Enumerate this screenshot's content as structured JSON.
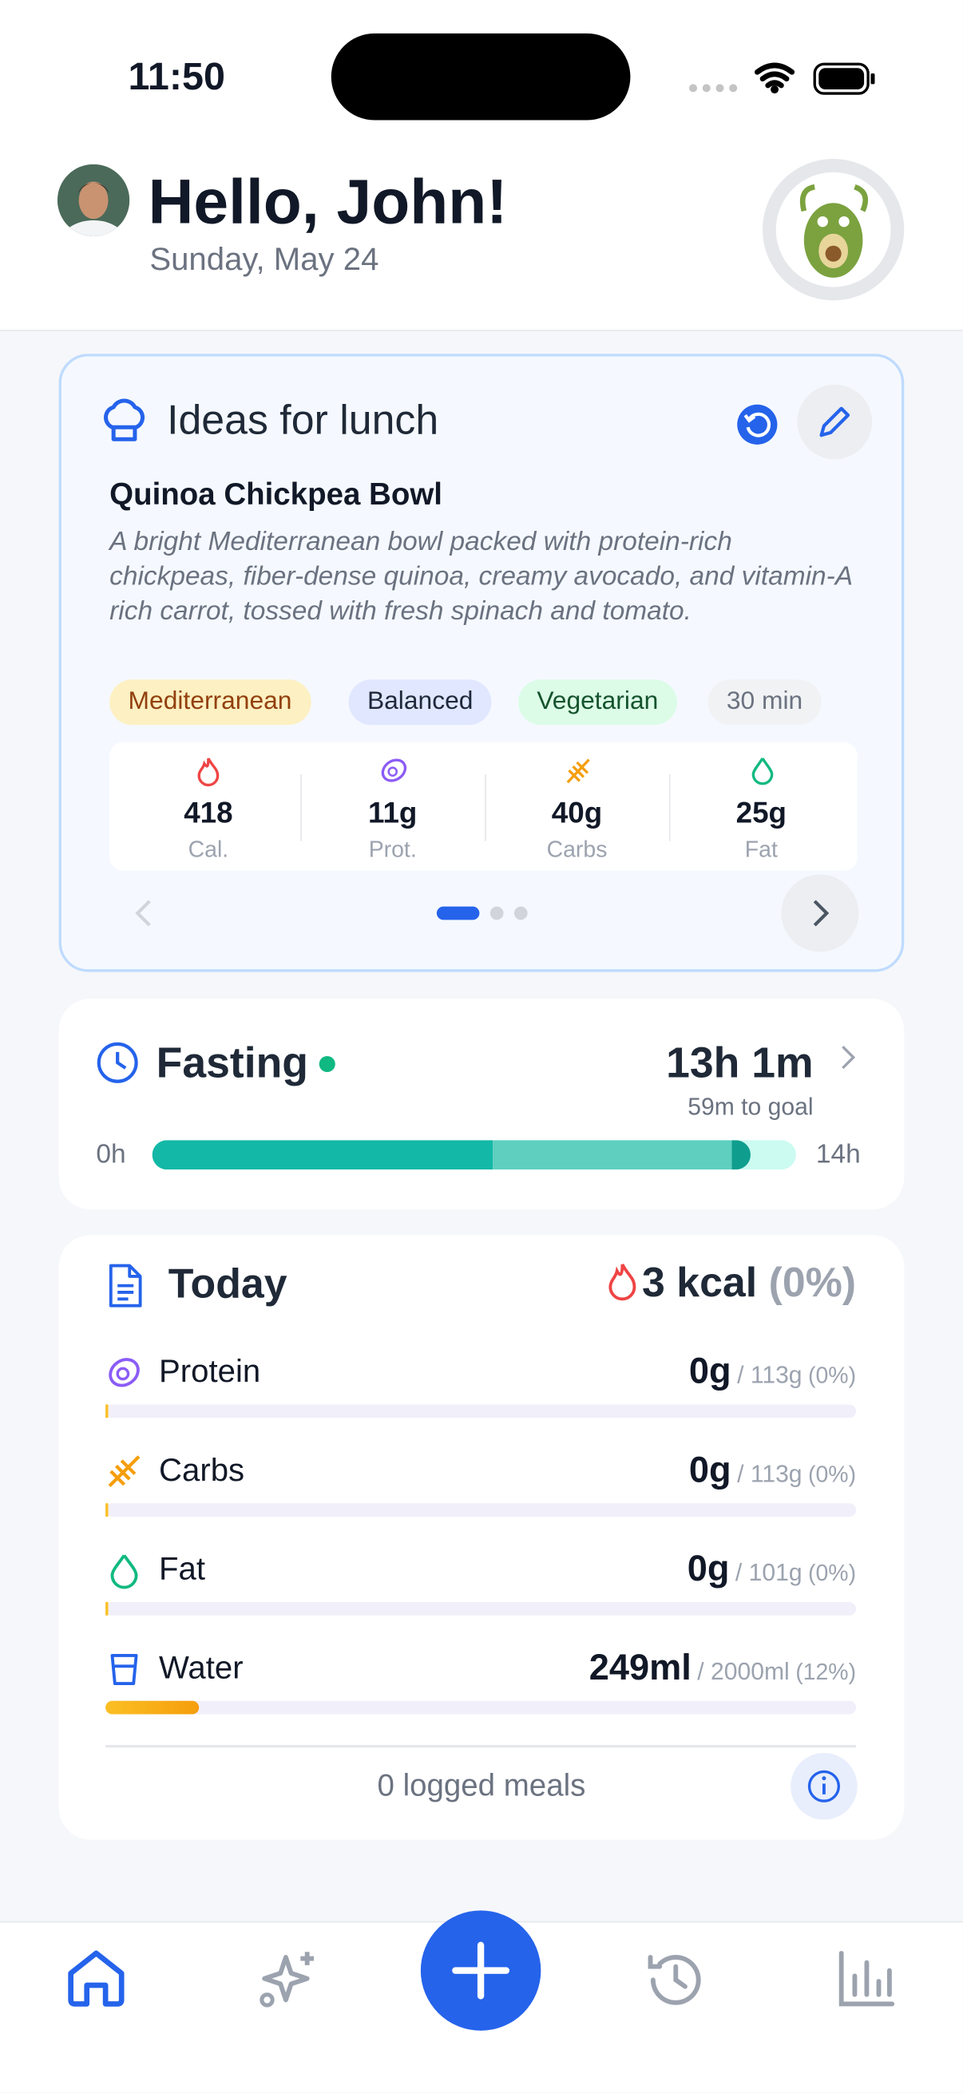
{
  "status_bar": {
    "time": "11:50"
  },
  "header": {
    "greeting": "Hello, John!",
    "date": "Sunday, May 24"
  },
  "idea_card": {
    "title": "Ideas for lunch",
    "recipe": "Quinoa Chickpea Bowl",
    "description": "A bright Mediterranean bowl packed with protein-rich chickpeas, fiber-dense quinoa, creamy avocado, and vitamin-A rich carrot, tossed with fresh spinach and tomato.",
    "tags": [
      "Mediterranean",
      "Balanced",
      "Vegetarian",
      "30 min"
    ],
    "nutrition": [
      {
        "value": "418",
        "label": "Cal."
      },
      {
        "value": "11g",
        "label": "Prot."
      },
      {
        "value": "40g",
        "label": "Carbs"
      },
      {
        "value": "25g",
        "label": "Fat"
      }
    ]
  },
  "fasting": {
    "title": "Fasting",
    "elapsed": "13h 1m",
    "to_goal": "59m to goal",
    "start": "0h",
    "end": "14h"
  },
  "today": {
    "title": "Today",
    "kcal": "3 kcal",
    "kcal_pct": "(0%)",
    "rows": [
      {
        "name": "Protein",
        "value": "0g",
        "goal": "/ 113g",
        "pct": "(0%)"
      },
      {
        "name": "Carbs",
        "value": "0g",
        "goal": "/ 113g",
        "pct": "(0%)"
      },
      {
        "name": "Fat",
        "value": "0g",
        "goal": "/ 101g",
        "pct": "(0%)"
      },
      {
        "name": "Water",
        "value": "249ml",
        "goal": "/ 2000ml",
        "pct": "(12%)"
      }
    ],
    "footer": "0 logged meals"
  }
}
